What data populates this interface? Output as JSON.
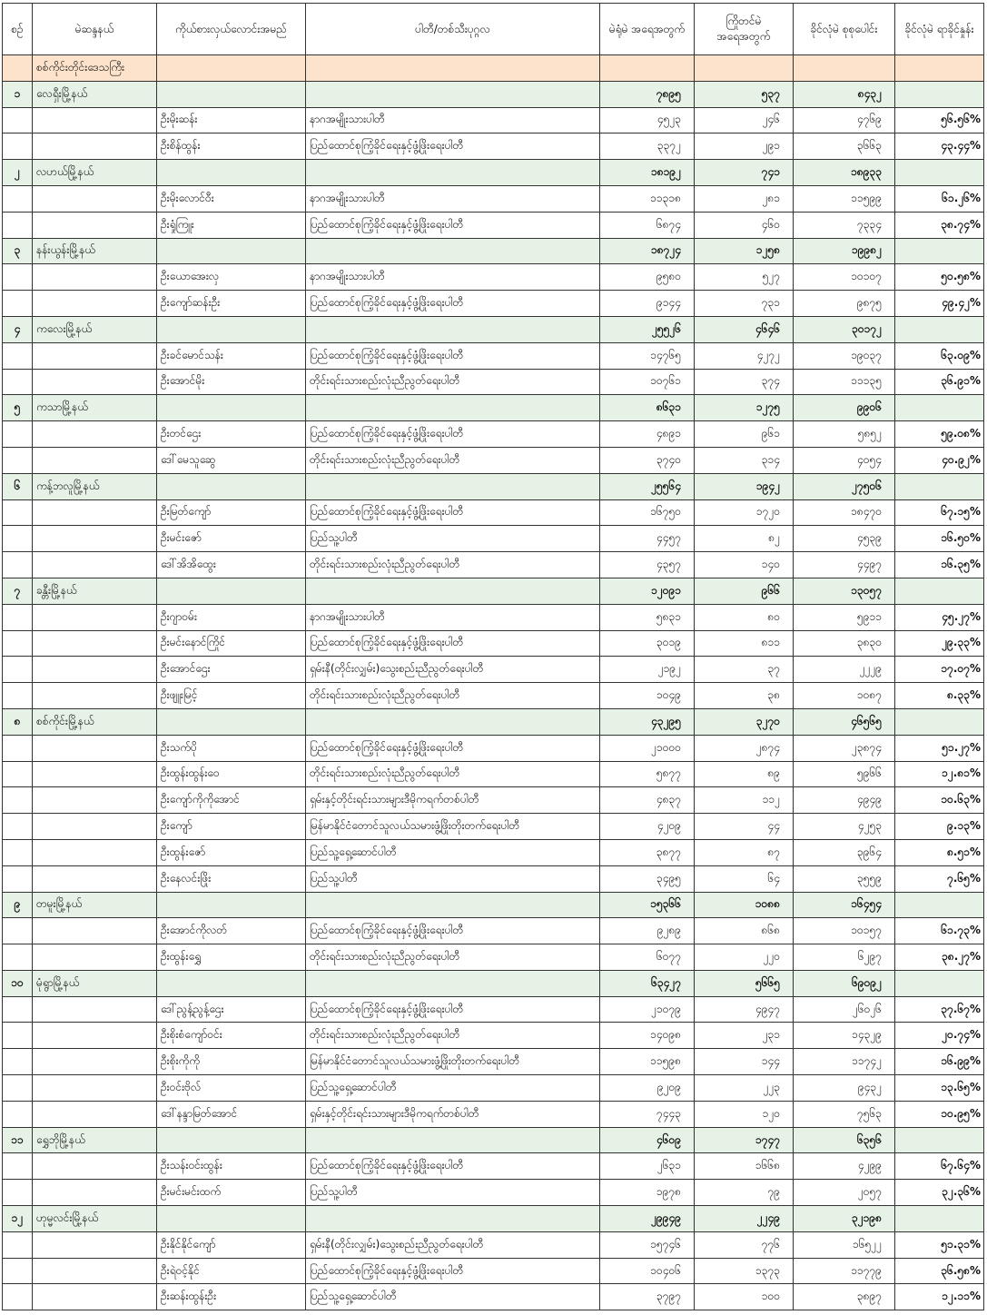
{
  "headers": [
    "စဉ်",
    "မဲဆန္ဒနယ်",
    "ကိုယ်စားလှယ်လောင်းအမည်",
    "ပါတီ/တစ်သီးပုဂ္ဂလ",
    "မဲရုံမဲ အရေအတွက်",
    "ကြိုတင်မဲ အရေအတွက်",
    "ခိုင်လုံမဲ စုစုပေါင်း",
    "ခိုင်လုံမဲ ရာခိုင်နှုန်း"
  ],
  "region": "စစ်ကိုင်းတိုင်းဒေသကြီး",
  "colors": {
    "region_row": "#fde3cc",
    "township_row": "#e6f2e6"
  },
  "townships": [
    {
      "no": "၁",
      "name": "လေရှီးမြို့နယ်",
      "polling": "၇၈၉၅",
      "advance": "၅၃၇",
      "total": "၈၄၃၂",
      "candidates": [
        {
          "name": "ဦးမိုးဆန်း",
          "party": "နာဂအမျိုးသားပါတီ",
          "polling": "၄၅၂၃",
          "advance": "၂၄၆",
          "total": "၄၇၆၉",
          "pct": "၅၆.၅၆%"
        },
        {
          "name": "ဦးစိန်ထွန်း",
          "party": "ပြည်ထောင်စုကြံ့ခိုင်ရေးနှင့်ဖွံ့ဖြိုးရေးပါတီ",
          "polling": "၃၃၇၂",
          "advance": "၂၉၁",
          "total": "၃၆၆၃",
          "pct": "၄၃.၄၄%"
        }
      ]
    },
    {
      "no": "၂",
      "name": "လဟယ်မြို့နယ်",
      "polling": "၁၈၁၉၂",
      "advance": "၇၄၁",
      "total": "၁၈၉၃၃",
      "candidates": [
        {
          "name": "ဦးမိုးလောင်ဝီး",
          "party": "နာဂအမျိုးသားပါတီ",
          "polling": "၁၁၃၁၈",
          "advance": "၂၈၁",
          "total": "၁၁၅၉၉",
          "pct": "၆၁.၂၆%"
        },
        {
          "name": "ဦးရှုံကြူး",
          "party": "ပြည်ထောင်စုကြံ့ခိုင်ရေးနှင့်ဖွံ့ဖြိုးရေးပါတီ",
          "polling": "၆၈၇၄",
          "advance": "၄၆၀",
          "total": "၇၃၃၄",
          "pct": "၃၈.၇၄%"
        }
      ]
    },
    {
      "no": "၃",
      "name": "နန်းယွန်းမြို့နယ်",
      "polling": "၁၈၇၂၄",
      "advance": "၁၂၅၈",
      "total": "၁၉၉၈၂",
      "candidates": [
        {
          "name": "ဦးယောအေးလှ",
          "party": "နာဂအမျိုးသားပါတီ",
          "polling": "၉၅၈၀",
          "advance": "၅၂၇",
          "total": "၁၀၁၀၇",
          "pct": "၅၀.၅၈%"
        },
        {
          "name": "ဦးကျော်ဆန်းဦး",
          "party": "ပြည်ထောင်စုကြံ့ခိုင်ရေးနှင့်ဖွံ့ဖြိုးရေးပါတီ",
          "polling": "၉၁၄၄",
          "advance": "၇၃၁",
          "total": "၉၈၇၅",
          "pct": "၄၉.၄၂%"
        }
      ]
    },
    {
      "no": "၄",
      "name": "ကလေးမြို့နယ်",
      "polling": "၂၅၅၂၆",
      "advance": "၄၆၄၆",
      "total": "၃၀၁၇၂",
      "candidates": [
        {
          "name": "ဦးခင်မောင်သန်း",
          "party": "ပြည်ထောင်စုကြံ့ခိုင်ရေးနှင့်ဖွံ့ဖြိုးရေးပါတီ",
          "polling": "၁၄၇၆၅",
          "advance": "၄၂၇၂",
          "total": "၁၉၀၃၇",
          "pct": "၆၃.၀၉%"
        },
        {
          "name": "ဦးအောင်မိုး",
          "party": "တိုင်းရင်းသားစည်းလုံးညီညွတ်ရေးပါတီ",
          "polling": "၁၀၇၆၁",
          "advance": "၃၇၄",
          "total": "၁၁၁၃၅",
          "pct": "၃၆.၉၁%"
        }
      ]
    },
    {
      "no": "၅",
      "name": "ကသာမြို့နယ်",
      "polling": "၈၆၃၁",
      "advance": "၁၂၇၅",
      "total": "၉၉၀၆",
      "candidates": [
        {
          "name": "ဦးတင်ဌေး",
          "party": "ပြည်ထောင်စုကြံ့ခိုင်ရေးနှင့်ဖွံ့ဖြိုးရေးပါတီ",
          "polling": "၄၈၉၁",
          "advance": "၉၆၁",
          "total": "၅၈၅၂",
          "pct": "၅၉.၀၈%"
        },
        {
          "name": "ဒေါ်မေသူဆွေ",
          "party": "တိုင်းရင်းသားစည်းလုံးညီညွတ်ရေးပါတီ",
          "polling": "၃၇၄၀",
          "advance": "၃၁၄",
          "total": "၄၀၅၄",
          "pct": "၄၀.၉၂%"
        }
      ]
    },
    {
      "no": "၆",
      "name": "ကန့်ဘလူမြို့နယ်",
      "polling": "၂၅၅၆၄",
      "advance": "၁၉၄၂",
      "total": "၂၇၅၀၆",
      "candidates": [
        {
          "name": "ဦးမြတ်ကျော်",
          "party": "ပြည်ထောင်စုကြံ့ခိုင်ရေးနှင့်ဖွံ့ဖြိုးရေးပါတီ",
          "polling": "၁၆၇၅၀",
          "advance": "၁၇၂၀",
          "total": "၁၈၄၇၀",
          "pct": "၆၇.၁၅%"
        },
        {
          "name": "ဦးမင်းဇော်",
          "party": "ပြည်သူ့ပါတီ",
          "polling": "၄၄၅၇",
          "advance": "၈၂",
          "total": "၄၅၃၉",
          "pct": "၁၆.၅၀%"
        },
        {
          "name": "ဒေါ်အိအိထွေး",
          "party": "တိုင်းရင်းသားစည်းလုံးညီညွတ်ရေးပါတီ",
          "polling": "၄၃၅၇",
          "advance": "၁၄၀",
          "total": "၄၄၉၇",
          "pct": "၁၆.၃၅%"
        }
      ]
    },
    {
      "no": "၇",
      "name": "ခန္တီးမြို့နယ်",
      "polling": "၁၂၀၉၁",
      "advance": "၉၆၆",
      "total": "၁၃၀၅၇",
      "candidates": [
        {
          "name": "ဦးဂျာဝမ်း",
          "party": "နာဂအမျိုးသားပါတီ",
          "polling": "၅၈၃၁",
          "advance": "၈၀",
          "total": "၅၉၁၁",
          "pct": "၄၅.၂၇%"
        },
        {
          "name": "ဦးမင်းနောင်ကြိုင်",
          "party": "ပြည်ထောင်စုကြံ့ခိုင်ရေးနှင့်ဖွံ့ဖြိုးရေးပါတီ",
          "polling": "၃၀၁၉",
          "advance": "၈၁၁",
          "total": "၃၈၃၀",
          "pct": "၂၉.၃၃%"
        },
        {
          "name": "ဦးအောင်ဌေး",
          "party": "ရှမ်းနီ(တိုင်းလျှမ်း)သွေးစည်းညီညွတ်ရေးပါတီ",
          "polling": "၂၁၉၂",
          "advance": "၃၇",
          "total": "၂၂၂၉",
          "pct": "၁၇.၀၇%"
        },
        {
          "name": "ဦးဖျူးမြင့်",
          "party": "တိုင်းရင်းသားစည်းလုံးညီညွတ်ရေးပါတီ",
          "polling": "၁၀၄၉",
          "advance": "၃၈",
          "total": "၁၀၈၇",
          "pct": "၈.၃၃%"
        }
      ]
    },
    {
      "no": "၈",
      "name": "စစ်ကိုင်းမြို့နယ်",
      "polling": "၄၃၂၉၅",
      "advance": "၃၂၇၀",
      "total": "၄၆၅၆၅",
      "candidates": [
        {
          "name": "ဦးသက်ပို",
          "party": "ပြည်ထောင်စုကြံ့ခိုင်ရေးနှင့်ဖွံ့ဖြိုးရေးပါတီ",
          "polling": "၂၁၀၀၀",
          "advance": "၂၈၇၄",
          "total": "၂၃၈၇၄",
          "pct": "၅၁.၂၇%"
        },
        {
          "name": "ဦးထွန်းထွန်းဝေ",
          "party": "တိုင်းရင်းသားစည်းလုံးညီညွတ်ရေးပါတီ",
          "polling": "၅၈၇၇",
          "advance": "၈၉",
          "total": "၅၉၆၆",
          "pct": "၁၂.၈၁%"
        },
        {
          "name": "ဦးကျော်ကိုကိုအောင်",
          "party": "ရှမ်းနှင့်တိုင်းရင်းသားများဒီမိုကရက်တစ်ပါတီ",
          "polling": "၄၈၃၇",
          "advance": "၁၁၂",
          "total": "၄၉၄၉",
          "pct": "၁၀.၆၃%"
        },
        {
          "name": "ဦးကျော်",
          "party": "မြန်မာနိုင်ငံတောင်သူလယ်သမားဖွံ့ဖြိုးတိုးတက်ရေးပါတီ",
          "polling": "၄၂၀၉",
          "advance": "၄၄",
          "total": "၄၂၅၃",
          "pct": "၉.၁၃%"
        },
        {
          "name": "ဦးထွန်းဇော်",
          "party": "ပြည်သူ့ရှေ့ဆောင်ပါတီ",
          "polling": "၃၈၇၇",
          "advance": "၈၇",
          "total": "၃၉၆၄",
          "pct": "၈.၅၁%"
        },
        {
          "name": "ဦးနေလင်းဖြိုး",
          "party": "ပြည်သူ့ပါတီ",
          "polling": "၃၄၉၅",
          "advance": "၆၄",
          "total": "၃၅၅၉",
          "pct": "၇.၆၅%"
        }
      ]
    },
    {
      "no": "၉",
      "name": "တမူးမြို့နယ်",
      "polling": "၁၅၃၆၆",
      "advance": "၁၀၈၈",
      "total": "၁၆၄၅၄",
      "candidates": [
        {
          "name": "ဦးအောင်ကိုလတ်",
          "party": "ပြည်ထောင်စုကြံ့ခိုင်ရေးနှင့်ဖွံ့ဖြိုးရေးပါတီ",
          "polling": "၉၂၈၉",
          "advance": "၈၆၈",
          "total": "၁၀၁၅၇",
          "pct": "၆၁.၇၃%"
        },
        {
          "name": "ဦးထွန်းရွှေ",
          "party": "တိုင်းရင်းသားစည်းလုံးညီညွတ်ရေးပါတီ",
          "polling": "၆၀၇၇",
          "advance": "၂၂၀",
          "total": "၆၂၉၇",
          "pct": "၃၈.၂၇%"
        }
      ]
    },
    {
      "no": "၁၀",
      "name": "မုံရွာမြို့နယ်",
      "polling": "၆၃၄၂၇",
      "advance": "၅၆၆၅",
      "total": "၆၉၀၉၂",
      "candidates": [
        {
          "name": "ဒေါ်ညွန့်ညွန့်ဌေး",
          "party": "ပြည်ထောင်စုကြံ့ခိုင်ရေးနှင့်ဖွံ့ဖြိုးရေးပါတီ",
          "polling": "၂၁၀၇၉",
          "advance": "၄၉၄၇",
          "total": "၂၆၀၂၆",
          "pct": "၃၇.၆၇%"
        },
        {
          "name": "ဦးစိုးစံကျော်ဝင်း",
          "party": "တိုင်းရင်းသားစည်းလုံးညီညွတ်ရေးပါတီ",
          "polling": "၁၄၀၉၈",
          "advance": "၂၃၁",
          "total": "၁၄၃၂၉",
          "pct": "၂၀.၇၄%"
        },
        {
          "name": "ဦးစိုးကိုကို",
          "party": "မြန်မာနိုင်ငံတောင်သူလယ်သမားဖွံ့ဖြိုးတိုးတက်ရေးပါတီ",
          "polling": "၁၁၅၉၈",
          "advance": "၁၄၄",
          "total": "၁၁၇၄၂",
          "pct": "၁၆.၉၉%"
        },
        {
          "name": "ဦးဝင်းဗိုလ်",
          "party": "ပြည်သူ့ရှေ့ဆောင်ပါတီ",
          "polling": "၉၂၀၉",
          "advance": "၂၂၃",
          "total": "၉၄၃၂",
          "pct": "၁၃.၆၅%"
        },
        {
          "name": "ဒေါ်နန္ဒာမြတ်အောင်",
          "party": "ရှမ်းနှင့်တိုင်းရင်းသားများဒီမိုကရက်တစ်ပါတီ",
          "polling": "၇၄၄၃",
          "advance": "၁၂၀",
          "total": "၇၅၆၃",
          "pct": "၁၀.၉၅%"
        }
      ]
    },
    {
      "no": "၁၁",
      "name": "ရွှေဘိုမြို့နယ်",
      "polling": "၄၆၀၉",
      "advance": "၁၇၄၇",
      "total": "၆၃၅၆",
      "candidates": [
        {
          "name": "ဦးသန်းဝင်းထွန်း",
          "party": "ပြည်ထောင်စုကြံ့ခိုင်ရေးနှင့်ဖွံ့ဖြိုးရေးပါတီ",
          "polling": "၂၆၃၁",
          "advance": "၁၆၆၈",
          "total": "၄၂၉၉",
          "pct": "၆၇.၆၄%"
        },
        {
          "name": "ဦးမင်းမင်းထက်",
          "party": "ပြည်သူ့ပါတီ",
          "polling": "၁၉၇၈",
          "advance": "၇၉",
          "total": "၂၀၅၇",
          "pct": "၃၂.၃၆%"
        }
      ]
    },
    {
      "no": "၁၂",
      "name": "ဟုမ္မလင်းမြို့နယ်",
      "polling": "၂၉၉၄၉",
      "advance": "၂၂၄၉",
      "total": "၃၂၁၉၈",
      "candidates": [
        {
          "name": "ဦးနိုင်နိုင်ကျော်",
          "party": "ရှမ်းနီ(တိုင်းလျှမ်း)သွေးစည်းညီညွတ်ရေးပါတီ",
          "polling": "၁၅၇၄၆",
          "advance": "၇၇၆",
          "total": "၁၆၅၂၂",
          "pct": "၅၁.၃၁%"
        },
        {
          "name": "ဦးရဲဝင့်နိုင်",
          "party": "ပြည်ထောင်စုကြံ့ခိုင်ရေးနှင့်ဖွံ့ဖြိုးရေးပါတီ",
          "polling": "၁၀၄၀၆",
          "advance": "၁၃၇၃",
          "total": "၁၁၇၇၉",
          "pct": "၃၆.၅၈%"
        },
        {
          "name": "ဦးဆန်းထွန်းဦး",
          "party": "ပြည်သူ့ရှေ့ဆောင်ပါတီ",
          "polling": "၃၇၉၇",
          "advance": "၁၀၀",
          "total": "၃၈၉၇",
          "pct": "၁၂.၁၁%"
        }
      ]
    }
  ]
}
